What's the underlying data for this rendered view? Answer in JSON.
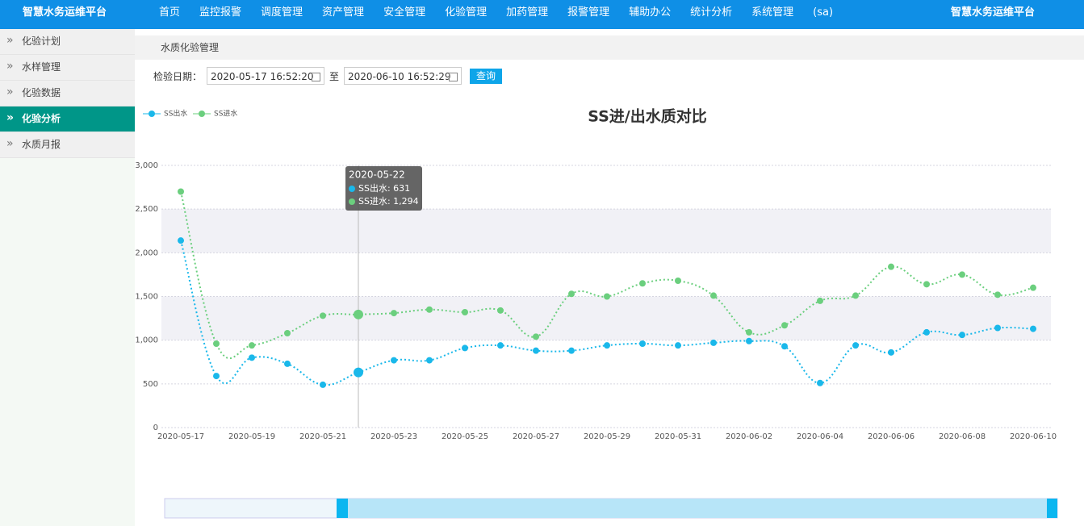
{
  "header": {
    "logo": "智慧水务运维平台",
    "nav": [
      "首页",
      "监控报警",
      "调度管理",
      "资产管理",
      "安全管理",
      "化验管理",
      "加药管理",
      "报警管理",
      "辅助办公",
      "统计分析",
      "系统管理",
      "(sa)"
    ],
    "right_title": "智慧水务运维平台"
  },
  "sidebar": {
    "items": [
      "化验计划",
      "水样管理",
      "化验数据",
      "化验分析",
      "水质月报"
    ],
    "active": 3
  },
  "breadcrumb": "水质化验管理",
  "form": {
    "label": "检验日期：",
    "start": "2020-05-17 16:52:20",
    "separator": "至",
    "end": "2020-06-10 16:52:29",
    "button": "查询"
  },
  "chart_data": {
    "type": "line",
    "title": "SS进/出水质对比",
    "x": [
      "2020-05-17",
      "2020-05-18",
      "2020-05-19",
      "2020-05-20",
      "2020-05-21",
      "2020-05-22",
      "2020-05-23",
      "2020-05-24",
      "2020-05-25",
      "2020-05-26",
      "2020-05-27",
      "2020-05-28",
      "2020-05-29",
      "2020-05-30",
      "2020-05-31",
      "2020-06-01",
      "2020-06-02",
      "2020-06-03",
      "2020-06-04",
      "2020-06-05",
      "2020-06-06",
      "2020-06-07",
      "2020-06-08",
      "2020-06-09",
      "2020-06-10"
    ],
    "xticks": [
      "2020-05-17",
      "2020-05-19",
      "2020-05-21",
      "2020-05-23",
      "2020-05-25",
      "2020-05-27",
      "2020-05-29",
      "2020-05-31",
      "2020-06-02",
      "2020-06-04",
      "2020-06-06",
      "2020-06-08",
      "2020-06-10"
    ],
    "series": [
      {
        "name": "SS出水",
        "color": "#1ab8ea",
        "values": [
          2140,
          590,
          800,
          730,
          490,
          631,
          770,
          770,
          910,
          940,
          880,
          880,
          940,
          960,
          940,
          970,
          990,
          930,
          510,
          940,
          860,
          1090,
          1060,
          1140,
          1130
        ]
      },
      {
        "name": "SS进水",
        "color": "#6bcf7e",
        "values": [
          2700,
          960,
          940,
          1080,
          1280,
          1294,
          1310,
          1350,
          1320,
          1340,
          1040,
          1530,
          1500,
          1650,
          1680,
          1510,
          1090,
          1170,
          1450,
          1510,
          1840,
          1640,
          1750,
          1520,
          1600
        ]
      }
    ],
    "ylim": [
      0,
      3000
    ],
    "yticks": [
      0,
      500,
      {
        "value": 1000,
        "label": "1,000"
      },
      {
        "value": 1500,
        "label": "1,500"
      },
      {
        "value": 2000,
        "label": "2,000"
      },
      {
        "value": 2500,
        "label": "2,500"
      },
      {
        "value": 3000,
        "label": "3,000"
      }
    ],
    "grid": true,
    "legend": "top-left",
    "tooltip": {
      "x": "2020-05-22",
      "entries": [
        "SS出水: 631",
        "SS进水: 1,294"
      ]
    }
  }
}
